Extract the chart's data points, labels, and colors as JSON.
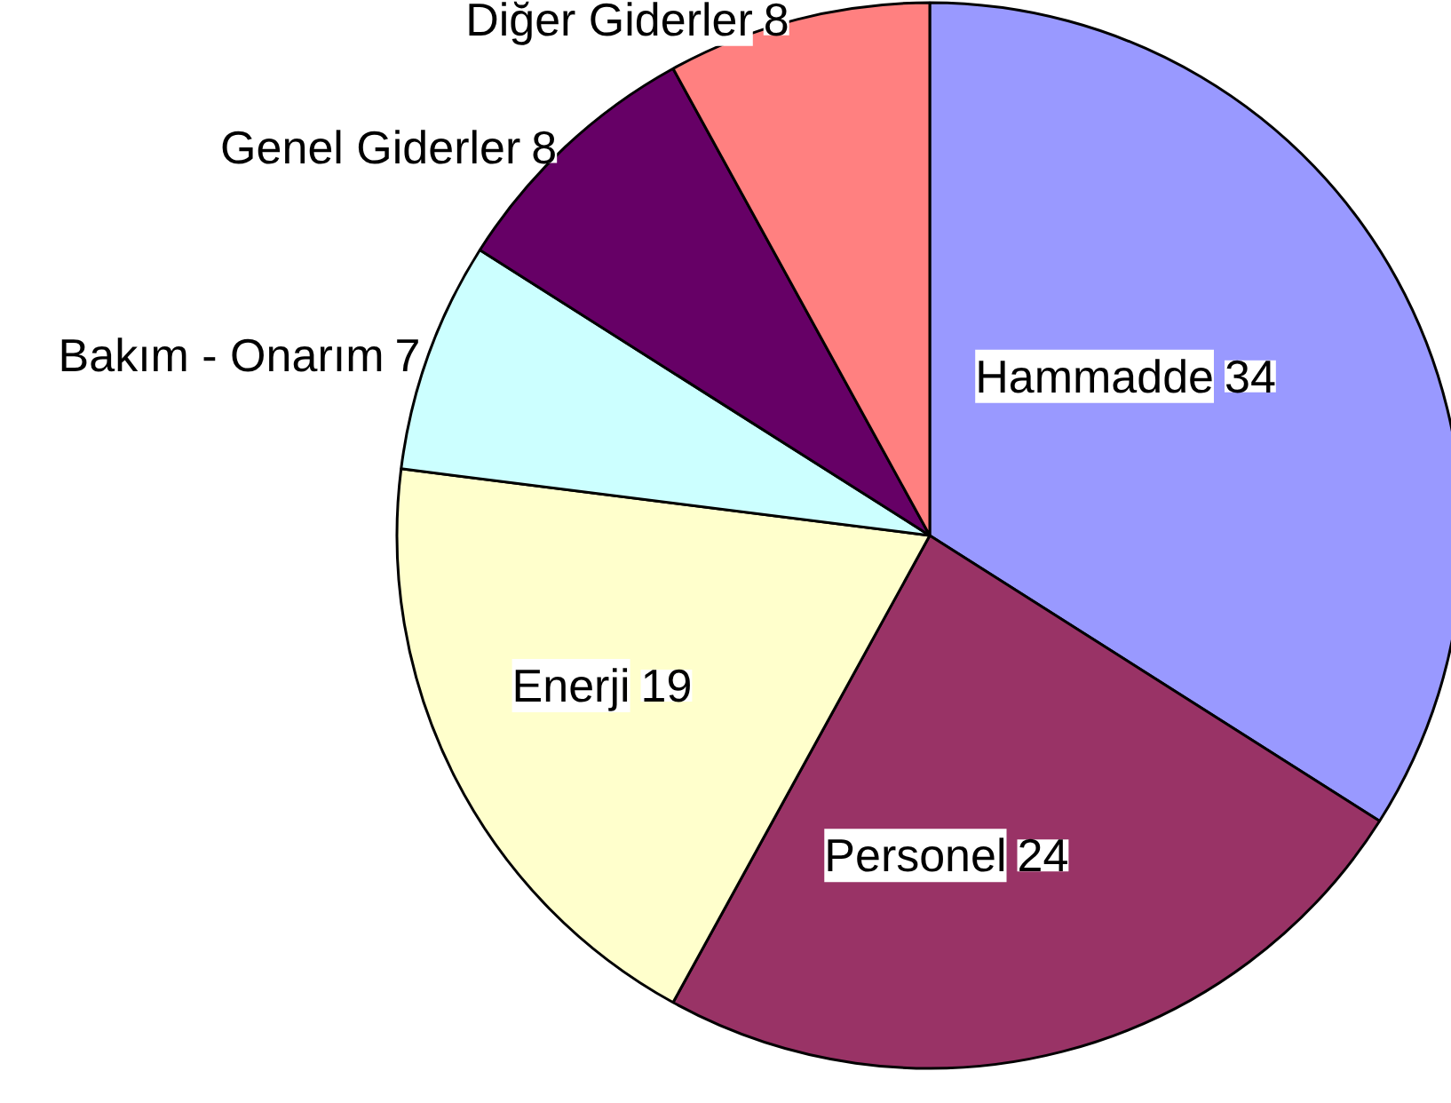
{
  "chart_data": {
    "type": "pie",
    "categories": [
      "Hammadde",
      "Personel",
      "Enerji",
      "Bakım - Onarım",
      "Genel Giderler",
      "Diğer Giderler"
    ],
    "values": [
      34,
      24,
      19,
      7,
      8,
      8
    ],
    "colors": [
      "#9999ff",
      "#993366",
      "#ffffcc",
      "#ccffff",
      "#660066",
      "#ff8080"
    ],
    "data_labels": true
  }
}
